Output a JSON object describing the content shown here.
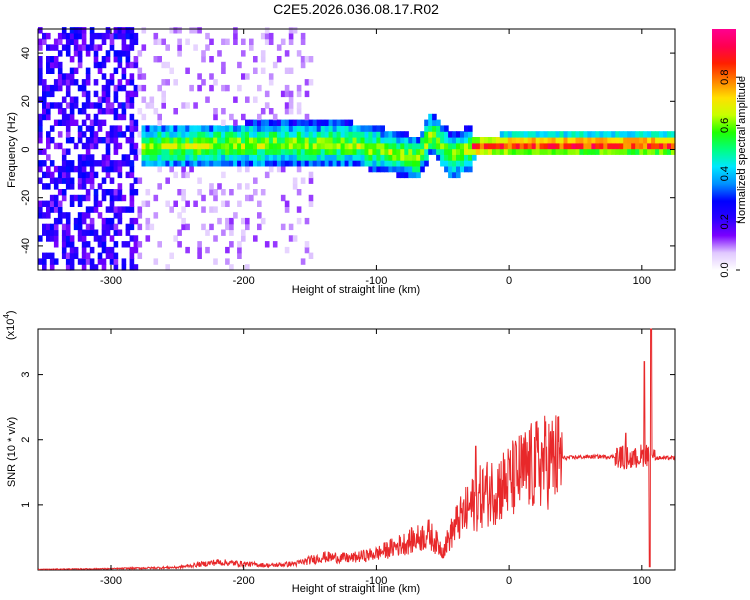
{
  "title": "C2E5.2026.036.08.17.R02",
  "chart_data": [
    {
      "type": "heatmap",
      "title": "",
      "xlabel": "Height of straight line (km)",
      "ylabel": "Frequency (Hz)",
      "xlim": [
        -355,
        125
      ],
      "ylim": [
        -50,
        50
      ],
      "xticks": [
        -300,
        -200,
        -100,
        0,
        100
      ],
      "yticks": [
        -40,
        -20,
        0,
        20,
        40
      ],
      "colorbar": {
        "label": "Normalized spectral amplitude",
        "range": [
          0,
          1
        ],
        "ticks": [
          0.0,
          0.2,
          0.4,
          0.6,
          0.8
        ],
        "colormap": [
          "#ffffff",
          "#e0c8ff",
          "#7a00ff",
          "#2a00ff",
          "#0000ff",
          "#0090ff",
          "#00e8ff",
          "#00ff80",
          "#20ff00",
          "#c8ff00",
          "#ffe000",
          "#ff8000",
          "#ff2000",
          "#ff0050",
          "#ff0090"
        ]
      },
      "ridge_center": [
        {
          "x": -280,
          "f": 0
        },
        {
          "x": -200,
          "f": 1
        },
        {
          "x": -120,
          "f": 1
        },
        {
          "x": -90,
          "f": -2
        },
        {
          "x": -70,
          "f": -5
        },
        {
          "x": -60,
          "f": 6
        },
        {
          "x": -45,
          "f": -4
        },
        {
          "x": -30,
          "f": 0
        },
        {
          "x": 0,
          "f": 1
        },
        {
          "x": 50,
          "f": 1
        },
        {
          "x": 100,
          "f": 1
        },
        {
          "x": 125,
          "f": 1
        }
      ]
    },
    {
      "type": "line",
      "title": "",
      "xlabel": "Height of straight line (km)",
      "ylabel": "SNR (10 * v/v)",
      "yscale_label": "(x10",
      "yscale_exp": "4",
      "xlim": [
        -355,
        125
      ],
      "ylim": [
        0,
        3.7
      ],
      "xticks": [
        -300,
        -200,
        -100,
        0,
        100
      ],
      "yticks": [
        1,
        2,
        3
      ],
      "color": "#e8282a",
      "series": [
        {
          "envelope": [
            {
              "x": -355,
              "y": 0.01
            },
            {
              "x": -300,
              "y": 0.02
            },
            {
              "x": -250,
              "y": 0.04
            },
            {
              "x": -220,
              "y": 0.12
            },
            {
              "x": -180,
              "y": 0.07
            },
            {
              "x": -160,
              "y": 0.1
            },
            {
              "x": -140,
              "y": 0.2
            },
            {
              "x": -120,
              "y": 0.18
            },
            {
              "x": -100,
              "y": 0.25
            },
            {
              "x": -80,
              "y": 0.4
            },
            {
              "x": -60,
              "y": 0.55
            },
            {
              "x": -50,
              "y": 0.3
            },
            {
              "x": -40,
              "y": 0.7
            },
            {
              "x": -30,
              "y": 0.95
            },
            {
              "x": -20,
              "y": 1.15
            },
            {
              "x": -10,
              "y": 1.25
            },
            {
              "x": 0,
              "y": 1.35
            },
            {
              "x": 10,
              "y": 1.5
            },
            {
              "x": 25,
              "y": 1.65
            },
            {
              "x": 40,
              "y": 1.72
            },
            {
              "x": 60,
              "y": 1.74
            },
            {
              "x": 80,
              "y": 1.74
            },
            {
              "x": 95,
              "y": 1.7
            },
            {
              "x": 105,
              "y": 1.8
            },
            {
              "x": 110,
              "y": 1.72
            },
            {
              "x": 125,
              "y": 1.72
            }
          ],
          "peaks": [
            {
              "x": 102,
              "y": 3.2
            },
            {
              "x": 107,
              "y": 3.7
            },
            {
              "x": 106,
              "y": 0.05
            },
            {
              "x": 88,
              "y": 2.1
            },
            {
              "x": -25,
              "y": 1.9
            },
            {
              "x": 0,
              "y": 1.7
            }
          ]
        }
      ]
    }
  ]
}
